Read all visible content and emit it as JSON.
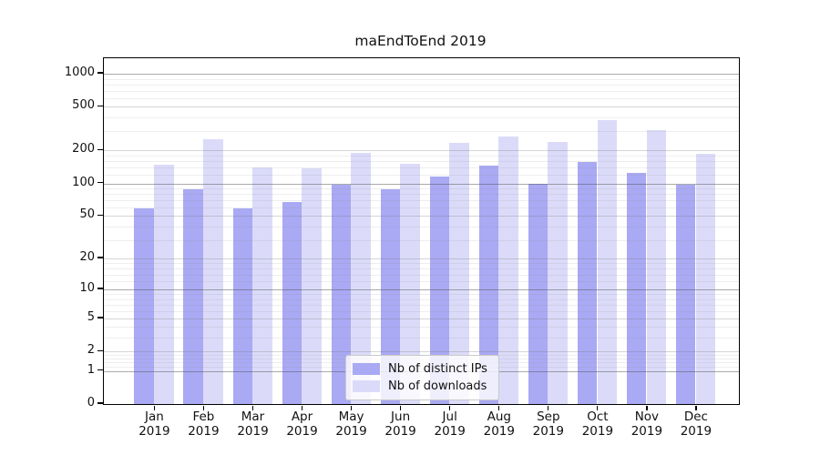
{
  "chart_data": {
    "type": "bar",
    "title": "maEndToEnd 2019",
    "categories": [
      "Jan",
      "Feb",
      "Mar",
      "Apr",
      "May",
      "Jun",
      "Jul",
      "Aug",
      "Sep",
      "Oct",
      "Nov",
      "Dec"
    ],
    "category_year": "2019",
    "series": [
      {
        "name": "Nb of distinct IPs",
        "color": "#a9a9f4",
        "values": [
          59,
          88,
          59,
          68,
          97,
          88,
          115,
          145,
          100,
          157,
          126,
          98
        ]
      },
      {
        "name": "Nb of downloads",
        "color": "#dbdbf9",
        "values": [
          148,
          255,
          140,
          138,
          190,
          150,
          235,
          270,
          240,
          375,
          305,
          188
        ]
      }
    ],
    "yscale": "symlog (log1p)",
    "y_ticks": [
      0,
      1,
      2,
      5,
      10,
      20,
      50,
      100,
      200,
      500,
      1000
    ],
    "ylim": [
      0,
      1380
    ],
    "grid": "on",
    "legend_position": "lower center"
  }
}
